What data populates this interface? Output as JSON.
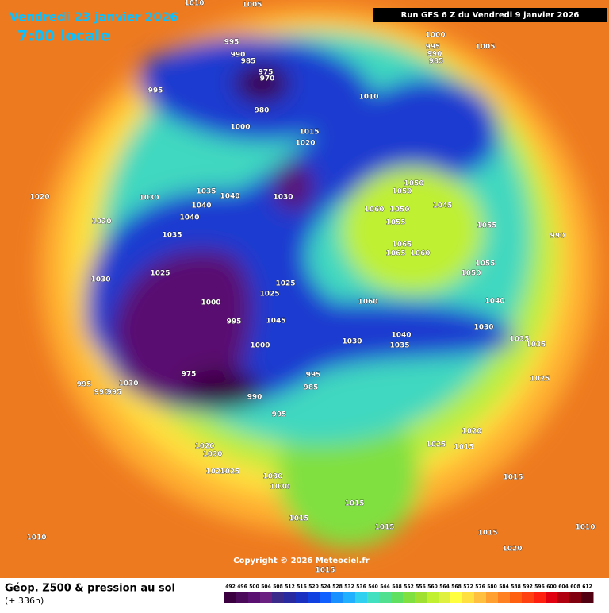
{
  "header": {
    "date": "Vendredi 23 janvier 2026",
    "time": "7:00 locale",
    "run": "Run GFS 6 Z du Vendredi 9 janvier 2026"
  },
  "isobar_labels": [
    1010,
    1005,
    995,
    990,
    985,
    975,
    970,
    995,
    980,
    1000,
    1015,
    1020,
    1000,
    995,
    990,
    985,
    1005,
    1010,
    1035,
    1040,
    1030,
    1030,
    1040,
    1040,
    1020,
    1020,
    1035,
    1050,
    1050,
    1060,
    1050,
    1045,
    1055,
    1055,
    990,
    1065,
    1065,
    1060,
    1055,
    1050,
    1025,
    1030,
    1025,
    1025,
    1000,
    1060,
    1040,
    995,
    1045,
    1030,
    1030,
    1040,
    1035,
    1035,
    1035,
    1000,
    995,
    985,
    975,
    990,
    995,
    995,
    995,
    995,
    1030,
    1025,
    1020,
    1025,
    1015,
    1020,
    1030,
    1025,
    1025,
    1030,
    1030,
    1015,
    1015,
    1015,
    1015,
    1015,
    1010,
    1010,
    1020,
    1015
  ],
  "copyright": "Copyright © 2026 Meteociel.fr",
  "footer": {
    "title": "Géop. Z500 & pression au sol",
    "lead": "(+ 336h)"
  },
  "colorbar": {
    "ticks": [
      492,
      496,
      500,
      504,
      508,
      512,
      516,
      520,
      524,
      528,
      532,
      536,
      540,
      544,
      548,
      552,
      556,
      560,
      564,
      568,
      572,
      576,
      580,
      584,
      588,
      592,
      596,
      600,
      604,
      608,
      612
    ],
    "colors": [
      "#3a0040",
      "#4b0a5a",
      "#5a1070",
      "#6a2080",
      "#3b2a8a",
      "#2a2aa0",
      "#1a30c0",
      "#1040e0",
      "#1060ff",
      "#1890ff",
      "#20b0ff",
      "#30d0f0",
      "#40e0c0",
      "#50e090",
      "#60e060",
      "#80e040",
      "#a0e030",
      "#c0f030",
      "#e0f040",
      "#ffff40",
      "#ffe040",
      "#ffc040",
      "#ffa030",
      "#ff8020",
      "#ff6010",
      "#ff4010",
      "#ff2010",
      "#e00010",
      "#b00010",
      "#800010",
      "#500010"
    ]
  }
}
